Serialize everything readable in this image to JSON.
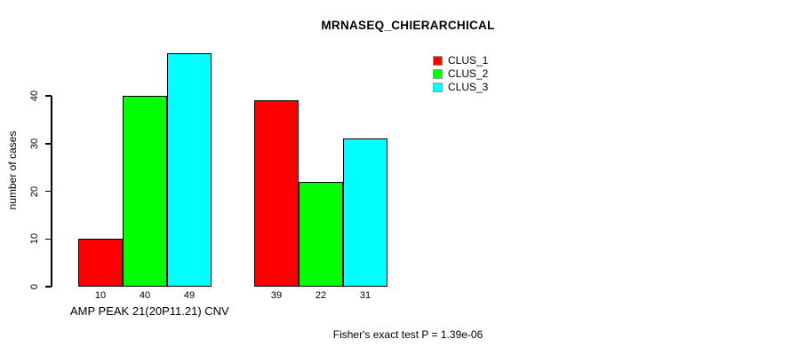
{
  "chart_data": {
    "type": "bar",
    "title": "MRNASEQ_CHIERARCHICAL",
    "ylabel": "number of cases",
    "xlabel": "AMP PEAK 21(20P11.21) CNV",
    "footnote": "Fisher's exact test P = 1.39e-06",
    "ylim": [
      0,
      49
    ],
    "yticks": [
      0,
      10,
      20,
      30,
      40
    ],
    "grid": false,
    "legend_position": "top-right",
    "n_groups": 2,
    "series": [
      {
        "name": "CLUS_1",
        "color": "#ff0000",
        "values": [
          10,
          39
        ]
      },
      {
        "name": "CLUS_2",
        "color": "#00ff00",
        "values": [
          40,
          22
        ]
      },
      {
        "name": "CLUS_3",
        "color": "#00ffff",
        "values": [
          49,
          31
        ]
      }
    ],
    "bar_value_labels": [
      [
        10,
        40,
        49
      ],
      [
        39,
        22,
        31
      ]
    ]
  },
  "colors": {
    "background": "#ffffff",
    "axis": "#000000",
    "text": "#000000"
  }
}
